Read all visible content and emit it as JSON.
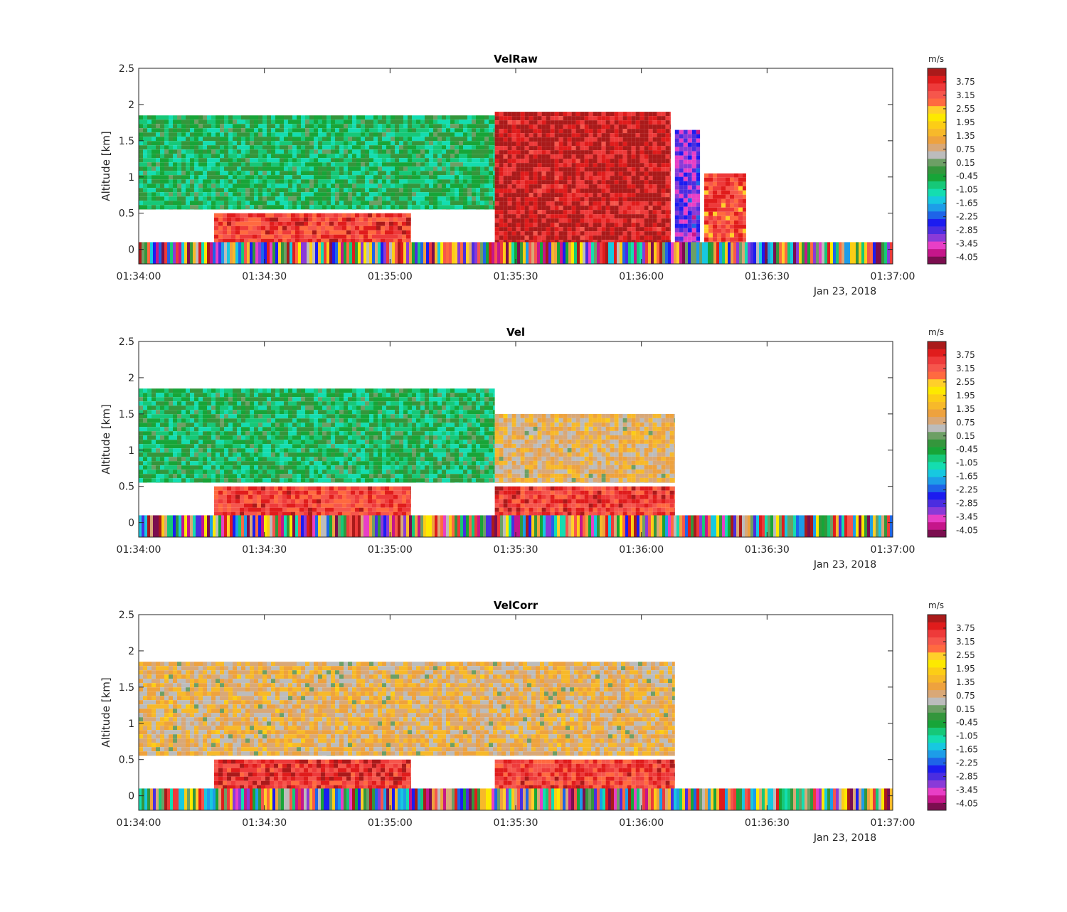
{
  "colors": {
    "palette": [
      "#7b0e4f",
      "#c5168a",
      "#e83fc6",
      "#8a3ad8",
      "#4b2de0",
      "#1c1cf0",
      "#1e64e8",
      "#1d9de8",
      "#17c8e0",
      "#14ddb0",
      "#16c878",
      "#17a538",
      "#34963c",
      "#6d9f65",
      "#bcbcbc",
      "#d9a877",
      "#eea23e",
      "#f7b92a",
      "#fccd16",
      "#fde900",
      "#ffcf2a",
      "#ff6a40",
      "#f6564c",
      "#ee3a3a",
      "#e01c1c",
      "#aa1a1a"
    ],
    "trace": "#000000",
    "nodata": "#ffffff"
  },
  "chart_data": [
    {
      "type": "heatmap",
      "title": "VelRaw",
      "ylabel": "Altitude [km]",
      "x_ticks": [
        "01:34:00",
        "01:34:30",
        "01:35:00",
        "01:35:30",
        "01:36:00",
        "01:36:30",
        "01:37:00"
      ],
      "x_date": "Jan 23, 2018",
      "xlim": [
        "01:34:00",
        "01:37:00"
      ],
      "ylim": [
        -0.2,
        2.5
      ],
      "y_ticks": [
        "0",
        "0.5",
        "1",
        "1.5",
        "2",
        "2.5"
      ],
      "colorbar": {
        "unit": "m/s",
        "range": [
          -4.35,
          4.35
        ],
        "ticks": [
          "3.75",
          "3.15",
          "2.55",
          "1.95",
          "1.35",
          "0.75",
          "0.15",
          "-0.45",
          "-1.05",
          "-1.65",
          "-2.25",
          "-2.85",
          "-3.45",
          "-4.05"
        ]
      },
      "regions": [
        {
          "t": [
            "01:34:00",
            "01:35:25"
          ],
          "alt": [
            0.55,
            1.85
          ],
          "vel": -0.6
        },
        {
          "t": [
            "01:34:18",
            "01:35:05"
          ],
          "alt": [
            0.0,
            0.5
          ],
          "vel": 3.4
        },
        {
          "t": [
            "01:35:25",
            "01:36:07"
          ],
          "alt": [
            0.0,
            1.9
          ],
          "vel": 4.0
        },
        {
          "t": [
            "01:36:08",
            "01:36:14"
          ],
          "alt": [
            0.0,
            1.65
          ],
          "vel": -3.0
        },
        {
          "t": [
            "01:36:15",
            "01:36:25"
          ],
          "alt": [
            0.1,
            1.05
          ],
          "vel": 3.3
        }
      ]
    },
    {
      "type": "heatmap",
      "title": "Vel",
      "ylabel": "Altitude [km]",
      "x_ticks": [
        "01:34:00",
        "01:34:30",
        "01:35:00",
        "01:35:30",
        "01:36:00",
        "01:36:30",
        "01:37:00"
      ],
      "x_date": "Jan 23, 2018",
      "xlim": [
        "01:34:00",
        "01:37:00"
      ],
      "ylim": [
        -0.2,
        2.5
      ],
      "y_ticks": [
        "0",
        "0.5",
        "1",
        "1.5",
        "2",
        "2.5"
      ],
      "colorbar": {
        "unit": "m/s",
        "range": [
          -4.35,
          4.35
        ],
        "ticks": [
          "3.75",
          "3.15",
          "2.55",
          "1.95",
          "1.35",
          "0.75",
          "0.15",
          "-0.45",
          "-1.05",
          "-1.65",
          "-2.25",
          "-2.85",
          "-3.45",
          "-4.05"
        ]
      },
      "regions": [
        {
          "t": [
            "01:34:00",
            "01:35:25"
          ],
          "alt": [
            0.55,
            1.85
          ],
          "vel": -0.6
        },
        {
          "t": [
            "01:34:18",
            "01:35:05"
          ],
          "alt": [
            0.0,
            0.5
          ],
          "vel": 3.4
        },
        {
          "t": [
            "01:35:25",
            "01:36:08"
          ],
          "alt": [
            0.55,
            1.5
          ],
          "vel": 1.0
        },
        {
          "t": [
            "01:35:25",
            "01:36:08"
          ],
          "alt": [
            0.0,
            0.5
          ],
          "vel": 3.4
        }
      ]
    },
    {
      "type": "heatmap",
      "title": "VelCorr",
      "ylabel": "Altitude [km]",
      "x_ticks": [
        "01:34:00",
        "01:34:30",
        "01:35:00",
        "01:35:30",
        "01:36:00",
        "01:36:30",
        "01:37:00"
      ],
      "x_date": "Jan 23, 2018",
      "xlim": [
        "01:34:00",
        "01:37:00"
      ],
      "ylim": [
        -0.2,
        2.5
      ],
      "y_ticks": [
        "0",
        "0.5",
        "1",
        "1.5",
        "2",
        "2.5"
      ],
      "colorbar": {
        "unit": "m/s",
        "range": [
          -4.35,
          4.35
        ],
        "ticks": [
          "3.75",
          "3.15",
          "2.55",
          "1.95",
          "1.35",
          "0.75",
          "0.15",
          "-0.45",
          "-1.05",
          "-1.65",
          "-2.25",
          "-2.85",
          "-3.45",
          "-4.05"
        ]
      },
      "regions": [
        {
          "t": [
            "01:34:00",
            "01:36:08"
          ],
          "alt": [
            0.55,
            1.85
          ],
          "vel": 1.0
        },
        {
          "t": [
            "01:34:18",
            "01:35:05"
          ],
          "alt": [
            0.0,
            0.5
          ],
          "vel": 3.6
        },
        {
          "t": [
            "01:35:25",
            "01:36:08"
          ],
          "alt": [
            0.0,
            0.5
          ],
          "vel": 3.4
        }
      ]
    }
  ]
}
